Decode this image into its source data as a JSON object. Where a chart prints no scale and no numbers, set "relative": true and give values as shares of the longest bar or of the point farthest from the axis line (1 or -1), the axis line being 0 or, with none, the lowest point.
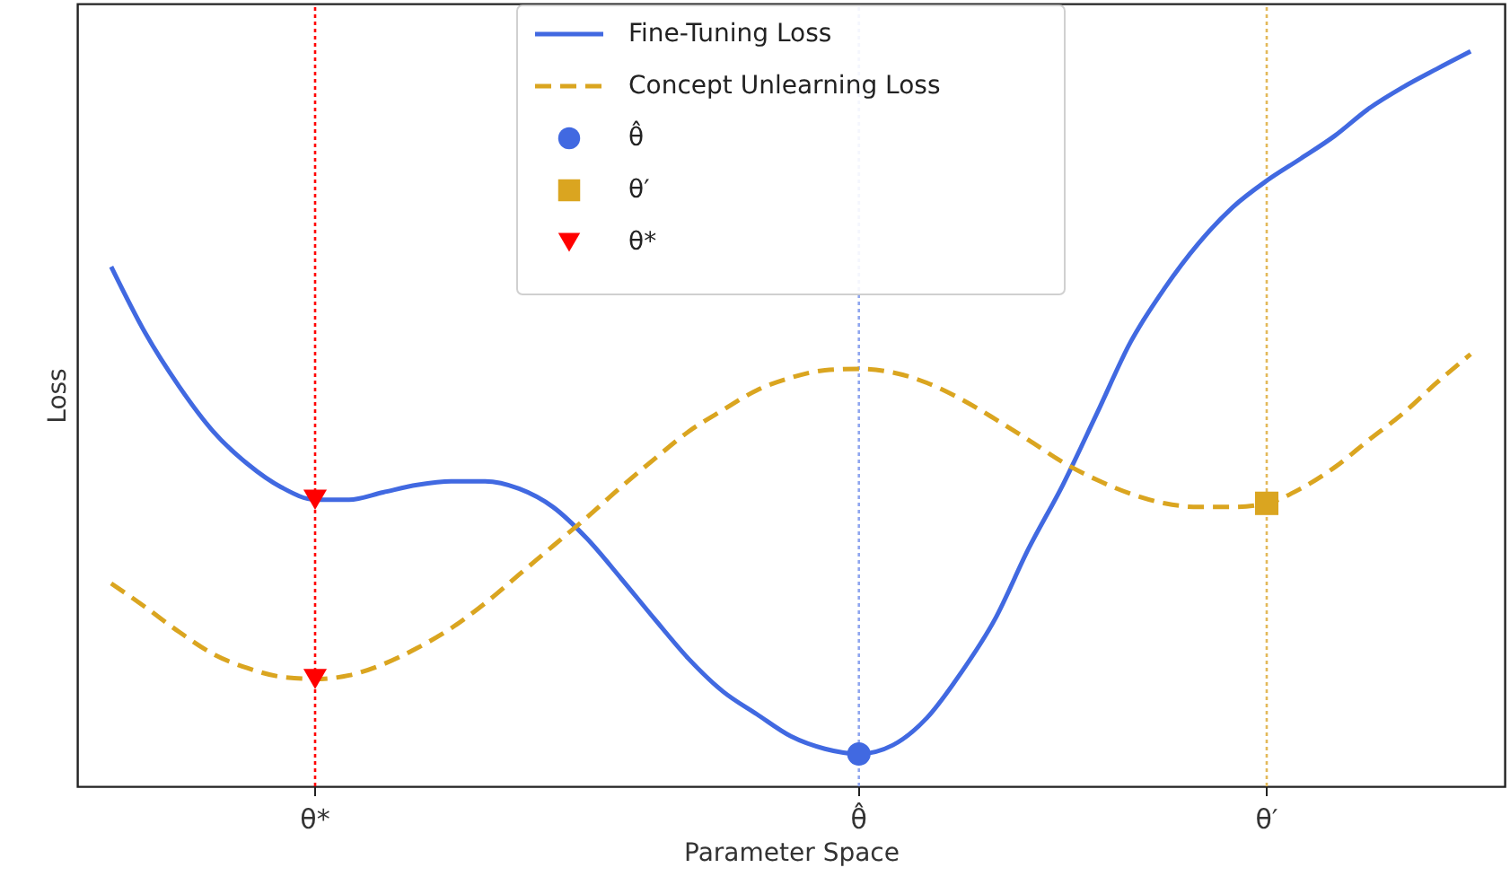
{
  "chart_data": {
    "type": "line",
    "relative": true,
    "xlabel": "Parameter Space",
    "ylabel": "Loss",
    "grid": false,
    "legend": "top",
    "categories": [
      null,
      null,
      null,
      null,
      null,
      null,
      "θ*",
      null,
      null,
      null,
      null,
      null,
      null,
      null,
      null,
      null,
      null,
      null,
      null,
      null,
      null,
      null,
      "θ̂",
      null,
      null,
      null,
      null,
      null,
      null,
      null,
      null,
      null,
      null,
      null,
      "θ′",
      null,
      null,
      null,
      null,
      null,
      null
    ],
    "series": [
      {
        "name": "Fine-Tuning Loss",
        "color": "#4169e1",
        "line_style": "solid",
        "values": [
          0.707,
          0.617,
          0.544,
          0.483,
          0.439,
          0.407,
          0.39,
          0.39,
          0.4,
          0.41,
          0.415,
          0.415,
          0.405,
          0.38,
          0.337,
          0.283,
          0.227,
          0.173,
          0.129,
          0.098,
          0.068,
          0.051,
          0.044,
          0.056,
          0.093,
          0.154,
          0.227,
          0.324,
          0.41,
          0.507,
          0.605,
          0.678,
          0.739,
          0.788,
          0.824,
          0.854,
          0.885,
          0.922,
          0.951,
          0.976,
          1.0
        ]
      },
      {
        "name": "Concept Unlearning Loss",
        "color": "#daa520",
        "line_style": "dashed",
        "values": [
          0.276,
          0.244,
          0.21,
          0.18,
          0.161,
          0.149,
          0.146,
          0.151,
          0.166,
          0.188,
          0.215,
          0.249,
          0.288,
          0.327,
          0.366,
          0.407,
          0.446,
          0.483,
          0.512,
          0.539,
          0.556,
          0.566,
          0.568,
          0.563,
          0.549,
          0.527,
          0.5,
          0.471,
          0.441,
          0.417,
          0.398,
          0.385,
          0.38,
          0.38,
          0.385,
          0.405,
          0.434,
          0.471,
          0.507,
          0.549,
          0.588
        ]
      },
      {
        "name": "θ̂",
        "type": "scatter",
        "color": "#4169e1",
        "marker": "circle",
        "x": [
          "θ̂"
        ],
        "values": [
          0.044
        ]
      },
      {
        "name": "θ′",
        "type": "scatter",
        "color": "#daa520",
        "marker": "square",
        "x": [
          "θ′"
        ],
        "values": [
          0.385
        ]
      },
      {
        "name": "θ*",
        "type": "scatter",
        "color": "#ff0000",
        "marker": "triangle",
        "x": [
          "θ*",
          "θ*"
        ],
        "values": [
          0.39,
          0.146
        ]
      }
    ],
    "ref_lines": [
      {
        "axis": "x",
        "value": "θ*",
        "color": "#ff0000",
        "line_style": "dotted"
      },
      {
        "axis": "x",
        "value": "θ̂",
        "color": "#8fa6ef",
        "line_style": "dotted"
      },
      {
        "axis": "x",
        "value": "θ′",
        "color": "#e3b95a",
        "line_style": "dotted"
      }
    ]
  }
}
